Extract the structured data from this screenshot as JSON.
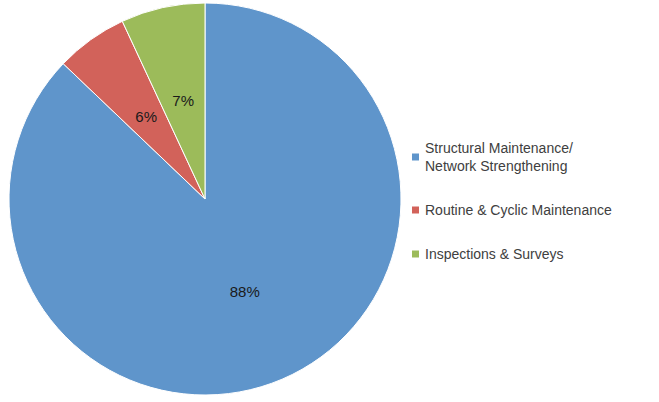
{
  "chart_data": {
    "type": "pie",
    "categories": [
      "Structural Maintenance/\nNetwork Strengthening",
      "Routine & Cyclic Maintenance",
      "Inspections & Surveys"
    ],
    "values": [
      88,
      6,
      7
    ],
    "value_labels": [
      "88%",
      "6%",
      "7%"
    ],
    "colors": [
      "#5f95cb",
      "#d2625a",
      "#9cbb5a"
    ],
    "data_labels": true,
    "legend": "right"
  }
}
